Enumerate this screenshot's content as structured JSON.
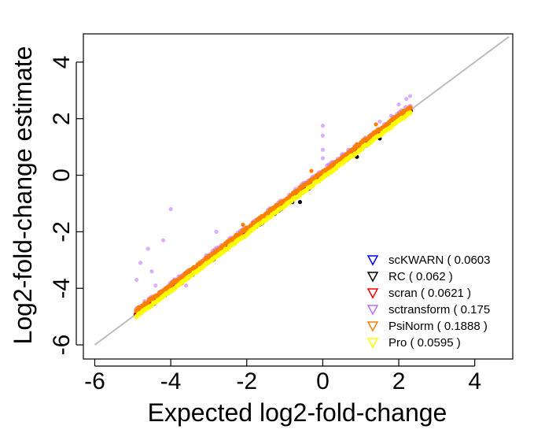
{
  "chart_data": {
    "type": "scatter",
    "title": "",
    "xlabel": "Expected log2-fold-change",
    "ylabel": "Log2-fold-change estimate",
    "xlim": [
      -6.3,
      5.0
    ],
    "ylim": [
      -6.5,
      5.0
    ],
    "xticks": [
      -6,
      -4,
      -2,
      0,
      2,
      4
    ],
    "yticks": [
      -6,
      -4,
      -2,
      0,
      2,
      4
    ],
    "grid": false,
    "legend_position": "bottom-right",
    "reference_line": {
      "x": [
        -6,
        4.9
      ],
      "y": [
        -6,
        4.9
      ],
      "color": "#bdbdbd"
    },
    "x_range_of_points": [
      -4.9,
      2.3
    ],
    "series": [
      {
        "name": "scKWARN ( 0.0603",
        "label": "scKWARN ( 0.0603",
        "color": "#0000ff",
        "offset": -0.02,
        "spread": 0.06,
        "points": []
      },
      {
        "name": "RC ( 0.062 )",
        "label": "RC ( 0.062 )",
        "color": "#000000",
        "offset": -0.04,
        "spread": 0.07,
        "points": [
          [
            -0.6,
            -0.95
          ],
          [
            -0.8,
            -0.95
          ],
          [
            0.9,
            0.65
          ],
          [
            1.5,
            1.3
          ]
        ]
      },
      {
        "name": "scran ( 0.0621 )",
        "label": "scran ( 0.0621 )",
        "color": "#ff0000",
        "offset": 0.02,
        "spread": 0.06,
        "points": []
      },
      {
        "name": "sctransform ( 0.175",
        "label": "sctransform ( 0.175",
        "color": "#c06cff",
        "offset": 0.14,
        "spread": 0.14,
        "points": [
          [
            -4.0,
            -1.2
          ],
          [
            -4.6,
            -2.6
          ],
          [
            -4.2,
            -2.3
          ],
          [
            -4.8,
            -3.1
          ],
          [
            -4.5,
            -3.4
          ],
          [
            -4.9,
            -3.7
          ],
          [
            -4.4,
            -3.9
          ],
          [
            0.0,
            1.75
          ],
          [
            0.0,
            1.4
          ],
          [
            0.0,
            0.9
          ],
          [
            0.0,
            0.6
          ],
          [
            1.5,
            1.9
          ],
          [
            1.8,
            2.1
          ],
          [
            2.0,
            2.5
          ],
          [
            2.2,
            2.7
          ],
          [
            2.3,
            2.8
          ],
          [
            -3.6,
            -3.9
          ],
          [
            -2.8,
            -2.0
          ],
          [
            -1.2,
            -1.1
          ],
          [
            0.95,
            0.95
          ]
        ]
      },
      {
        "name": "PsiNorm ( 0.1888 )",
        "label": "PsiNorm ( 0.1888 )",
        "color": "#ff7f00",
        "offset": 0.12,
        "spread": 0.07,
        "points": [
          [
            -0.3,
            0.15
          ],
          [
            0.9,
            1.1
          ],
          [
            1.4,
            1.8
          ],
          [
            -2.1,
            -1.75
          ]
        ]
      },
      {
        "name": "Pro ( 0.0595 )",
        "label": "Pro ( 0.0595 )",
        "color": "#ffff00",
        "offset": -0.08,
        "spread": 0.05,
        "points": []
      }
    ]
  }
}
